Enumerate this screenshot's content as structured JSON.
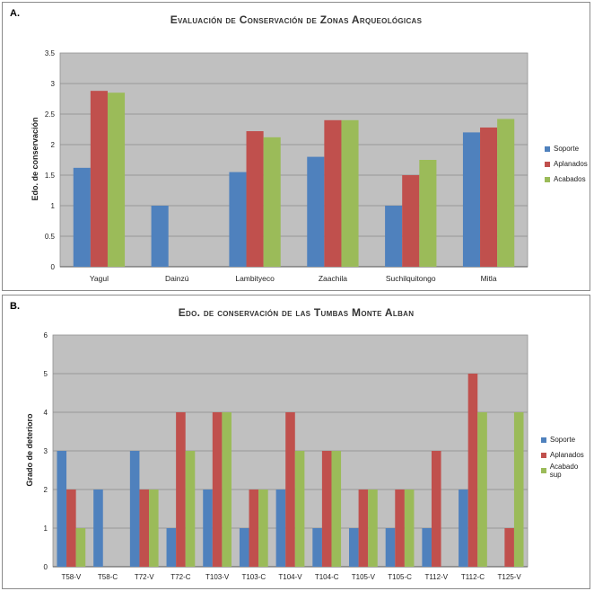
{
  "chart_data": [
    {
      "type": "bar",
      "panel_label": "A.",
      "title": "Evaluación de Conservación de Zonas Arqueológicas",
      "xlabel": "",
      "ylabel": "Edo. de conservación",
      "ylim": [
        0,
        3.5
      ],
      "yticks": [
        "0",
        "0.5",
        "1",
        "1.5",
        "2",
        "2.5",
        "3",
        "3.5"
      ],
      "grid": true,
      "legend_position": "right",
      "categories": [
        "Yagul",
        "Dainzú",
        "Lambityeco",
        "Zaachila",
        "Suchilquitongo",
        "Mitla"
      ],
      "series": [
        {
          "name": "Soporte",
          "color": "#4f81bd",
          "values": [
            1.62,
            1.0,
            1.55,
            1.8,
            1.0,
            2.2
          ]
        },
        {
          "name": "Aplanados",
          "color": "#c0504d",
          "values": [
            2.88,
            null,
            2.22,
            2.4,
            1.5,
            2.28
          ]
        },
        {
          "name": "Acabados",
          "color": "#9bbb59",
          "values": [
            2.85,
            null,
            2.12,
            2.4,
            1.75,
            2.42
          ]
        }
      ]
    },
    {
      "type": "bar",
      "panel_label": "B.",
      "title": "Edo. de conservación de las Tumbas Monte Alban",
      "xlabel": "",
      "ylabel": "Grado de deterioro",
      "ylim": [
        0,
        6
      ],
      "yticks": [
        "0",
        "1",
        "2",
        "3",
        "4",
        "5",
        "6"
      ],
      "grid": true,
      "legend_position": "right",
      "categories": [
        "T58-V",
        "T58-C",
        "T72-V",
        "T72-C",
        "T103-V",
        "T103-C",
        "T104-V",
        "T104-C",
        "T105-V",
        "T105-C",
        "T112-V",
        "T112-C",
        "T125-V"
      ],
      "series": [
        {
          "name": "Soporte",
          "color": "#4f81bd",
          "values": [
            3,
            2,
            3,
            1,
            2,
            1,
            2,
            1,
            1,
            1,
            1,
            2,
            null
          ]
        },
        {
          "name": "Aplanados",
          "color": "#c0504d",
          "values": [
            2,
            null,
            2,
            4,
            4,
            2,
            4,
            3,
            2,
            2,
            3,
            5,
            1
          ]
        },
        {
          "name": "Acabado sup",
          "color": "#9bbb59",
          "values": [
            1,
            null,
            2,
            3,
            4,
            2,
            3,
            3,
            2,
            2,
            null,
            4,
            4
          ]
        }
      ]
    }
  ]
}
